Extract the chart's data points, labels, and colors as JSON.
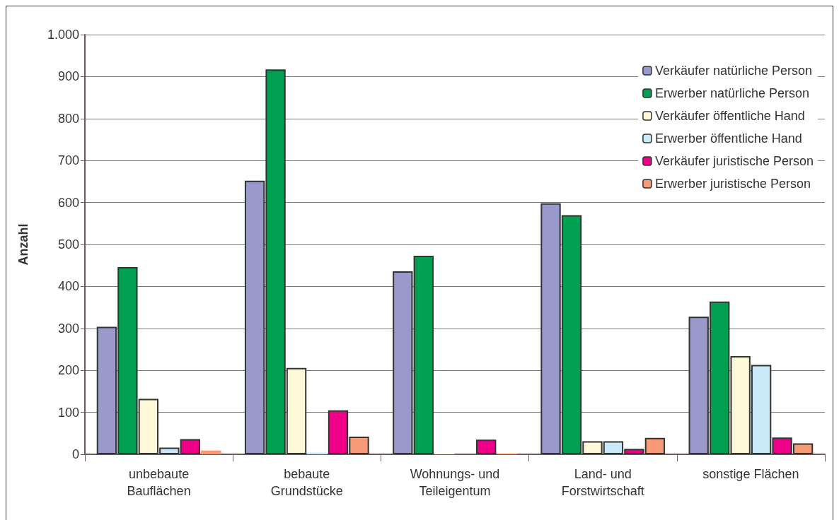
{
  "chart_data": {
    "type": "bar",
    "ylabel": "Anzahl",
    "categories": [
      "unbebaute\nBauflächen",
      "bebaute\nGrundstücke",
      "Wohnungs- und\nTeileigentum",
      "Land- und\nForstwirtschaft",
      "sonstige Flächen"
    ],
    "series": [
      {
        "name": "Verkäufer natürliche Person",
        "color": "#9999cc",
        "values": [
          304,
          652,
          436,
          598,
          328
        ]
      },
      {
        "name": "Erwerber natürliche Person",
        "color": "#00a050",
        "values": [
          446,
          917,
          473,
          570,
          364
        ]
      },
      {
        "name": "Verkäufer öffentliche Hand",
        "color": "#fff9d9",
        "values": [
          132,
          206,
          3,
          31,
          234
        ]
      },
      {
        "name": "Erwerber öffentliche Hand",
        "color": "#c9e9f9",
        "values": [
          16,
          4,
          null,
          31,
          213
        ]
      },
      {
        "name": "Verkäufer juristische Person",
        "color": "#ee0088",
        "values": [
          36,
          105,
          35,
          13,
          40
        ]
      },
      {
        "name": "Erwerber juristische Person",
        "color": "#f79a78",
        "values": [
          9,
          42,
          2,
          39,
          26
        ]
      }
    ],
    "ylim": [
      0,
      1000
    ],
    "yticks": [
      0,
      100,
      200,
      300,
      400,
      500,
      600,
      700,
      800,
      900,
      {
        "value": 1000,
        "label": "1.000"
      }
    ],
    "grid": "y",
    "legend": "top right"
  }
}
